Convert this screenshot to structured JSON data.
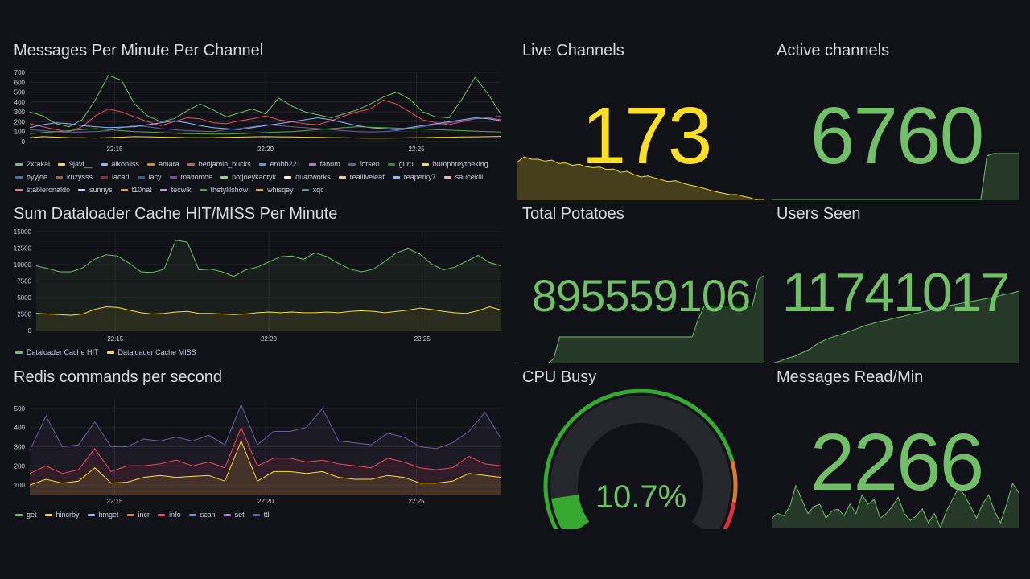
{
  "panels": {
    "messages": {
      "title": "Messages Per Minute Per Channel",
      "legend": [
        {
          "name": "2xrakai",
          "color": "#73bf69"
        },
        {
          "name": "9javi__",
          "color": "#fade2a"
        },
        {
          "name": "alkobliss",
          "color": "#8ab8ff"
        },
        {
          "name": "amara",
          "color": "#ff780a"
        },
        {
          "name": "benjamin_bucks",
          "color": "#f2495c"
        },
        {
          "name": "erobb221",
          "color": "#5794f2"
        },
        {
          "name": "fanum",
          "color": "#b877d9"
        },
        {
          "name": "forsen",
          "color": "#705da0"
        },
        {
          "name": "guru",
          "color": "#37872d"
        },
        {
          "name": "humphreytheking",
          "color": "#fade2a"
        },
        {
          "name": "hyyjoe",
          "color": "#3274d9"
        },
        {
          "name": "kuzysss",
          "color": "#c15c17"
        },
        {
          "name": "lacari",
          "color": "#c4162a"
        },
        {
          "name": "lacy",
          "color": "#1f60c4"
        },
        {
          "name": "maltomoe",
          "color": "#8f3bb8"
        },
        {
          "name": "notjoeykaotyk",
          "color": "#96d98d"
        },
        {
          "name": "quanworks",
          "color": "#fff899"
        },
        {
          "name": "realliveleaf",
          "color": "#ffcb7d"
        },
        {
          "name": "reaperky7",
          "color": "#8ab8ff"
        },
        {
          "name": "saucekill",
          "color": "#ffa6b0"
        },
        {
          "name": "stableronaldo",
          "color": "#ff7383"
        },
        {
          "name": "sunnys",
          "color": "#c0d8ff"
        },
        {
          "name": "t10nat",
          "color": "#ff9830"
        },
        {
          "name": "tecwik",
          "color": "#ca95e5"
        },
        {
          "name": "thetylilshow",
          "color": "#56a64b"
        },
        {
          "name": "whisqey",
          "color": "#e0b400"
        },
        {
          "name": "xqc",
          "color": "#5f9ea0"
        }
      ],
      "chart_data": {
        "type": "line",
        "yticks": [
          "700",
          "600",
          "500",
          "400",
          "300",
          "200",
          "100",
          "0"
        ],
        "ylim": [
          0,
          700
        ],
        "xticks": [
          "22:15",
          "22:20",
          "22:25"
        ],
        "series": [
          {
            "name": "2xrakai",
            "color": "#73bf69",
            "values": [
              300,
              260,
              180,
              150,
              220,
              420,
              670,
              620,
              380,
              260,
              200,
              230,
              310,
              380,
              320,
              250,
              290,
              330,
              280,
              440,
              360,
              300,
              270,
              240,
              280,
              320,
              380,
              450,
              500,
              430,
              300,
              250,
              240,
              430,
              650,
              480,
              270
            ]
          },
          {
            "name": "benjamin_bucks",
            "color": "#f2495c",
            "values": [
              180,
              150,
              120,
              100,
              150,
              260,
              330,
              300,
              250,
              200,
              160,
              200,
              240,
              230,
              190,
              180,
              210,
              230,
              260,
              220,
              200,
              180,
              170,
              210,
              260,
              300,
              330,
              420,
              380,
              300,
              220,
              190,
              170,
              200,
              230,
              240,
              220
            ]
          },
          {
            "name": "forsen",
            "color": "#705da0",
            "values": [
              120,
              110,
              100,
              90,
              95,
              100,
              110,
              140,
              160,
              150,
              130,
              120,
              110,
              105,
              100,
              120,
              130,
              150,
              170,
              160,
              150,
              140,
              130,
              120,
              110,
              100,
              95,
              100,
              110,
              130,
              150,
              170,
              190,
              210,
              230,
              240,
              260
            ]
          },
          {
            "name": "alkobliss",
            "color": "#8ab8ff",
            "values": [
              140,
              170,
              190,
              180,
              160,
              150,
              140,
              145,
              150,
              170,
              190,
              210,
              190,
              160,
              140,
              130,
              120,
              140,
              160,
              180,
              200,
              220,
              240,
              220,
              190,
              160,
              140,
              130,
              120,
              140,
              160,
              180,
              200,
              220,
              240,
              230,
              210
            ]
          },
          {
            "name": "9javi__",
            "color": "#fade2a",
            "values": [
              40,
              50,
              45,
              40,
              38,
              36,
              40,
              45,
              50,
              48,
              45,
              42,
              40,
              38,
              40,
              42,
              45,
              48,
              50,
              48,
              46,
              44,
              42,
              40,
              38,
              36,
              35,
              34,
              36,
              38,
              40,
              42,
              44,
              46,
              48,
              50,
              52
            ]
          },
          {
            "name": "thetylilshow",
            "color": "#56a64b",
            "values": [
              80,
              90,
              100,
              110,
              120,
              130,
              120,
              110,
              100,
              95,
              90,
              85,
              80,
              78,
              76,
              75,
              80,
              85,
              90,
              95,
              100,
              110,
              120,
              130,
              140,
              150,
              145,
              140,
              135,
              130,
              125,
              120,
              115,
              110,
              105,
              100,
              95
            ]
          }
        ]
      }
    },
    "dataloader": {
      "title": "Sum Dataloader Cache HIT/MISS Per Minute",
      "legend": [
        {
          "name": "Dataloader Cache HIT",
          "color": "#73bf69"
        },
        {
          "name": "Dataloader Cache MISS",
          "color": "#fade2a"
        }
      ],
      "chart_data": {
        "type": "line",
        "yticks": [
          "15000",
          "12500",
          "10000",
          "7500",
          "5000",
          "2500",
          "0"
        ],
        "ylim": [
          0,
          15000
        ],
        "xticks": [
          "22:15",
          "22:20",
          "22:25"
        ],
        "series": [
          {
            "name": "Dataloader Cache HIT",
            "color": "#73bf69",
            "values": [
              9800,
              9400,
              8900,
              8900,
              9500,
              10800,
              11500,
              11300,
              10200,
              8900,
              8800,
              9300,
              13700,
              13400,
              9200,
              9300,
              8900,
              8200,
              9200,
              9600,
              10400,
              11200,
              11300,
              10800,
              11800,
              11200,
              10200,
              9300,
              8900,
              9300,
              10500,
              11800,
              12400,
              11600,
              10100,
              9200,
              9600,
              10500,
              11400,
              10300,
              9800
            ]
          },
          {
            "name": "Dataloader Cache MISS",
            "color": "#fade2a",
            "values": [
              2600,
              2500,
              2400,
              2300,
              2500,
              3200,
              3600,
              3500,
              3100,
              2700,
              2500,
              2600,
              2800,
              2900,
              2600,
              2600,
              2500,
              2400,
              2500,
              2700,
              2800,
              2700,
              2800,
              2700,
              2700,
              2800,
              2700,
              2900,
              3000,
              2900,
              2700,
              2900,
              3100,
              3400,
              3200,
              2900,
              2700,
              2600,
              3000,
              3600,
              3100
            ]
          }
        ]
      }
    },
    "redis": {
      "title": "Redis commands per second",
      "legend": [
        {
          "name": "get",
          "color": "#73bf69"
        },
        {
          "name": "hincrby",
          "color": "#fade2a"
        },
        {
          "name": "hmget",
          "color": "#8ab8ff"
        },
        {
          "name": "incr",
          "color": "#ff780a"
        },
        {
          "name": "info",
          "color": "#f2495c"
        },
        {
          "name": "scan",
          "color": "#5794f2"
        },
        {
          "name": "set",
          "color": "#b877d9"
        },
        {
          "name": "ttl",
          "color": "#705da0"
        }
      ],
      "chart_data": {
        "type": "area",
        "yticks": [
          "500",
          "400",
          "300",
          "200",
          "100"
        ],
        "ylim": [
          50,
          550
        ],
        "xticks": [
          "22:15",
          "22:20",
          "22:25"
        ],
        "series": [
          {
            "name": "ttl",
            "color": "#705da0",
            "values": [
              280,
              460,
              300,
              310,
              430,
              300,
              300,
              340,
              330,
              350,
              330,
              360,
              310,
              520,
              310,
              380,
              380,
              400,
              500,
              330,
              320,
              310,
              370,
              350,
              300,
              290,
              320,
              380,
              480,
              340
            ]
          },
          {
            "name": "info",
            "color": "#f2495c",
            "values": [
              160,
              200,
              160,
              180,
              290,
              170,
              200,
              200,
              210,
              230,
              200,
              220,
              190,
              400,
              200,
              240,
              240,
              220,
              230,
              210,
              200,
              190,
              240,
              220,
              190,
              180,
              190,
              250,
              210,
              200
            ]
          },
          {
            "name": "hincrby",
            "color": "#fade2a",
            "values": [
              100,
              130,
              110,
              120,
              190,
              110,
              115,
              140,
              150,
              140,
              145,
              150,
              120,
              330,
              120,
              170,
              170,
              160,
              170,
              140,
              130,
              130,
              150,
              140,
              110,
              110,
              120,
              160,
              150,
              140
            ]
          }
        ]
      }
    },
    "live_channels": {
      "title": "Live Channels",
      "value": "173",
      "color": "#fade2a",
      "spark": [
        0.82,
        0.93,
        0.88,
        0.88,
        0.84,
        0.86,
        0.79,
        0.8,
        0.75,
        0.77,
        0.72,
        0.7,
        0.71,
        0.66,
        0.67,
        0.6,
        0.62,
        0.55,
        0.5,
        0.52,
        0.48,
        0.44,
        0.4,
        0.42,
        0.37,
        0.33,
        0.3,
        0.26,
        0.22,
        0.18,
        0.15,
        0.12,
        0.12,
        0.08,
        0.05,
        0.0,
        0.0
      ]
    },
    "active_channels": {
      "title": "Active channels",
      "value": "6760",
      "color": "#73bf69",
      "spark": [
        0,
        0,
        0,
        0,
        0,
        0,
        0,
        0,
        0,
        0,
        0,
        0,
        0,
        0,
        0,
        0,
        0,
        0,
        0,
        0,
        0,
        0,
        0,
        0,
        0,
        0,
        0,
        0,
        0,
        0,
        0,
        0,
        0,
        0,
        0.95,
        1,
        1,
        1,
        1,
        1
      ]
    },
    "total_potatoes": {
      "title": "Total Potatoes",
      "value": "895559106",
      "color": "#73bf69",
      "spark": [
        0,
        0,
        0,
        0,
        0,
        0,
        0.05,
        0.3,
        0.3,
        0.3,
        0.3,
        0.3,
        0.3,
        0.3,
        0.3,
        0.3,
        0.3,
        0.3,
        0.3,
        0.3,
        0.3,
        0.3,
        0.3,
        0.3,
        0.3,
        0.3,
        0.3,
        0.3,
        0.3,
        0.3,
        0.5,
        0.65,
        0.65,
        0.65,
        0.65,
        0.65,
        0.65,
        0.65,
        0.65,
        0.65,
        0.95,
        1
      ]
    },
    "users_seen": {
      "title": "Users Seen",
      "value": "11741017",
      "color": "#73bf69",
      "spark": [
        0,
        0.03,
        0.07,
        0.1,
        0.15,
        0.2,
        0.28,
        0.33,
        0.37,
        0.4,
        0.44,
        0.48,
        0.52,
        0.55,
        0.58,
        0.6,
        0.63,
        0.65,
        0.68,
        0.7,
        0.72,
        0.75,
        0.78,
        0.8,
        0.82,
        0.84,
        0.86,
        0.88,
        0.9,
        0.92,
        0.95,
        0.97,
        1
      ]
    },
    "cpu_busy": {
      "title": "CPU Busy",
      "value": "10.7%",
      "percent": 10.7,
      "color": "#37a933"
    },
    "messages_read": {
      "title": "Messages Read/Min",
      "value": "2266",
      "color": "#73bf69",
      "spark": [
        0.2,
        0.3,
        0.25,
        0.45,
        0.9,
        0.6,
        0.3,
        0.45,
        0.5,
        0.2,
        0.35,
        0.4,
        0.25,
        0.5,
        0.3,
        0.7,
        0.5,
        0.6,
        0.2,
        0.3,
        0.45,
        0.65,
        0.3,
        0.15,
        0.25,
        0.4,
        0.1,
        0.3,
        0.0,
        0.35,
        0.6,
        0.85,
        0.7,
        0.45,
        0.2,
        0.5,
        0.7,
        0.35,
        0.1,
        0.5,
        0.95,
        0.75
      ]
    }
  }
}
